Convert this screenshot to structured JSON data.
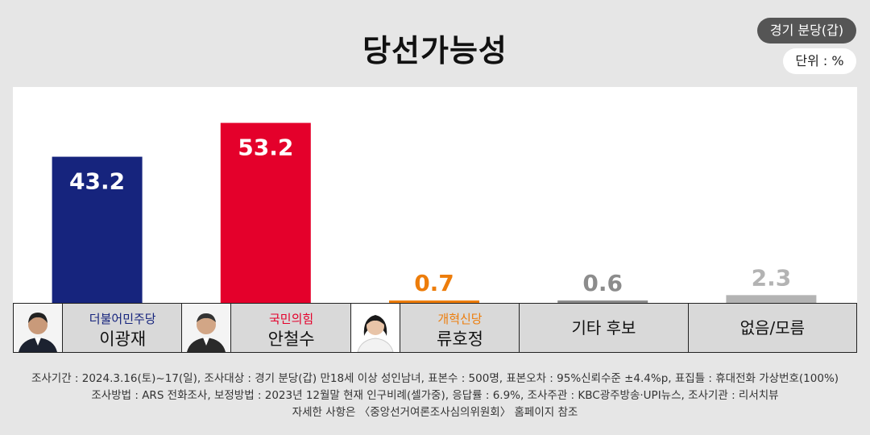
{
  "header": {
    "title": "당선가능성",
    "region_badge": "경기 분당(갑)",
    "unit_badge": "단위 : %"
  },
  "colors": {
    "c1": "#16247d",
    "c2": "#e4002b",
    "c3": "#ed7d0b",
    "c4": "#8c8c8c",
    "c5": "#b3b3b3"
  },
  "candidates": [
    {
      "party": "더불어민주당",
      "name": "이광재",
      "party_color": "#16247d",
      "photo_icon": "candidate-photo"
    },
    {
      "party": "국민의힘",
      "name": "안철수",
      "party_color": "#e4002b",
      "photo_icon": "candidate-photo"
    },
    {
      "party": "개혁신당",
      "name": "류호정",
      "party_color": "#ed7d0b",
      "photo_icon": "candidate-photo"
    },
    {
      "label": "기타 후보"
    },
    {
      "label": "없음/모름"
    }
  ],
  "chart_data": {
    "type": "bar",
    "title": "당선가능성",
    "categories": [
      "이광재",
      "안철수",
      "류호정",
      "기타 후보",
      "없음/모름"
    ],
    "values": [
      43.2,
      53.2,
      0.7,
      0.6,
      2.3
    ],
    "value_labels": [
      "43.2",
      "53.2",
      "0.7",
      "0.6",
      "2.3"
    ],
    "colors": [
      "#16247d",
      "#e4002b",
      "#ed7d0b",
      "#8c8c8c",
      "#b3b3b3"
    ],
    "ylim": [
      0,
      60
    ],
    "grid": false,
    "unit": "단위 : %"
  },
  "footer": {
    "line1": "조사기간 : 2024.3.16(토)~17(일), 조사대상 : 경기 분당(갑) 만18세 이상 성인남녀, 표본수 : 500명, 표본오차 : 95%신뢰수준 ±4.4%p, 표집틀 : 휴대전화 가상번호(100%)",
    "line2": "조사방법 : ARS 전화조사, 보정방법 : 2023년 12월말 현재 인구비례(셀가중), 응답률 : 6.9%, 조사주관 : KBC광주방송·UPI뉴스, 조사기관 : 리서치뷰",
    "line3": "자세한 사항은 〈중앙선거여론조사심의위원회〉 홈페이지 참조"
  }
}
